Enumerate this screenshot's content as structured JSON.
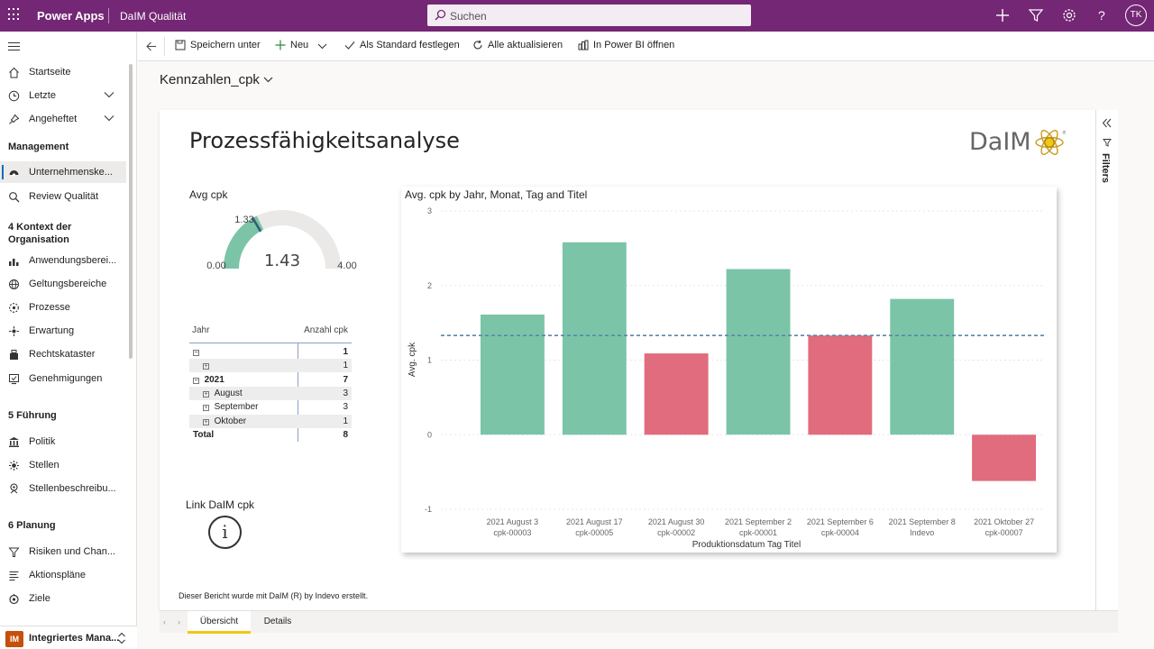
{
  "topbar": {
    "app_name": "Power Apps",
    "env_name": "DaIM Qualität",
    "search_placeholder": "Suchen",
    "avatar_initials": "TK",
    "bg_color": "#742774"
  },
  "sidebar": {
    "items_top": [
      {
        "label": "Startseite",
        "icon": "home-icon"
      },
      {
        "label": "Letzte",
        "icon": "clock-icon",
        "chevron": true
      },
      {
        "label": "Angeheftet",
        "icon": "pin-icon",
        "chevron": true
      }
    ],
    "group_management": "Management",
    "management_items": [
      {
        "label": "Unternehmenske...",
        "icon": "dashboard-icon",
        "active": true
      },
      {
        "label": "Review Qualität",
        "icon": "review-icon"
      }
    ],
    "group_kontext": "4 Kontext der Organisation",
    "kontext_items": [
      {
        "label": "Anwendungsberei...",
        "icon": "chart-icon"
      },
      {
        "label": "Geltungsbereiche",
        "icon": "globe-icon"
      },
      {
        "label": "Prozesse",
        "icon": "process-icon"
      },
      {
        "label": "Erwartung",
        "icon": "expectation-icon"
      },
      {
        "label": "Rechtskataster",
        "icon": "law-icon"
      },
      {
        "label": "Genehmigungen",
        "icon": "approval-icon"
      }
    ],
    "group_fuehrung": "5 Führung",
    "fuehrung_items": [
      {
        "label": "Politik",
        "icon": "policy-icon"
      },
      {
        "label": "Stellen",
        "icon": "position-icon"
      },
      {
        "label": "Stellenbeschreibu...",
        "icon": "org-icon"
      }
    ],
    "group_planung": "6 Planung",
    "planung_items": [
      {
        "label": "Risiken und Chan...",
        "icon": "risk-icon"
      },
      {
        "label": "Aktionspläne",
        "icon": "list-icon"
      },
      {
        "label": "Ziele",
        "icon": "target-icon"
      }
    ],
    "area_badge": "IM",
    "area_label": "Integriertes Mana..."
  },
  "commands": {
    "save_as": "Speichern unter",
    "new": "Neu",
    "set_default": "Als Standard festlegen",
    "refresh_all": "Alle aktualisieren",
    "open_powerbi": "In Power BI öffnen"
  },
  "page_title": "Kennzahlen_cpk",
  "report": {
    "title": "Prozessfähigkeitsanalyse",
    "logo_text": "DaIM",
    "filters_label": "Filters",
    "gauge": {
      "title": "Avg cpk",
      "value": 1.43,
      "value_label": "1.43",
      "min": 0,
      "min_label": "0.00",
      "max": 4,
      "max_label": "4.00",
      "target": 1.33,
      "target_label": "1.33",
      "fill_color": "#7bc4a8"
    },
    "matrix": {
      "col1": "Jahr",
      "col2": "Anzahl cpk",
      "rows": [
        {
          "label": "",
          "value": "1",
          "level": 0,
          "box": "−",
          "bold": true,
          "shade": false
        },
        {
          "label": "",
          "value": "1",
          "level": 1,
          "box": "+",
          "bold": false,
          "shade": true
        },
        {
          "label": "2021",
          "value": "7",
          "level": 0,
          "box": "−",
          "bold": true,
          "shade": false
        },
        {
          "label": "August",
          "value": "3",
          "level": 1,
          "box": "+",
          "bold": false,
          "shade": true
        },
        {
          "label": "September",
          "value": "3",
          "level": 1,
          "box": "+",
          "bold": false,
          "shade": false
        },
        {
          "label": "Oktober",
          "value": "1",
          "level": 1,
          "box": "+",
          "bold": false,
          "shade": true
        },
        {
          "label": "Total",
          "value": "8",
          "level": 0,
          "box": "",
          "bold": true,
          "shade": false
        }
      ]
    },
    "link_title": "Link DaIM cpk",
    "footer": "Dieser Bericht wurde mit DaIM (R) by Indevo erstellt.",
    "tabs": [
      "Übersicht",
      "Details"
    ]
  },
  "chart_data": {
    "type": "bar",
    "title": "Avg. cpk by Jahr, Monat, Tag and Titel",
    "xlabel": "Produktionsdatum Tag Titel",
    "ylabel": "Avg. cpk",
    "ylim": [
      -1,
      3
    ],
    "yticks": [
      -1,
      0,
      1,
      2,
      3
    ],
    "grid": true,
    "categories": [
      [
        "2021 August 3",
        "cpk-00003"
      ],
      [
        "2021 August 17",
        "cpk-00005"
      ],
      [
        "2021 August 30",
        "cpk-00002"
      ],
      [
        "2021 September 2",
        "cpk-00001"
      ],
      [
        "2021 September 6",
        "cpk-00004"
      ],
      [
        "2021 September 8",
        "Indevo"
      ],
      [
        "2021 Oktober 27",
        "cpk-00007"
      ]
    ],
    "values": [
      1.61,
      2.58,
      1.09,
      2.22,
      1.33,
      1.82,
      -0.62
    ],
    "colors": [
      "#7bc4a8",
      "#7bc4a8",
      "#e06c7d",
      "#7bc4a8",
      "#e06c7d",
      "#7bc4a8",
      "#e06c7d"
    ],
    "reference_line": 1.33,
    "reference_color": "#5b87a8"
  }
}
